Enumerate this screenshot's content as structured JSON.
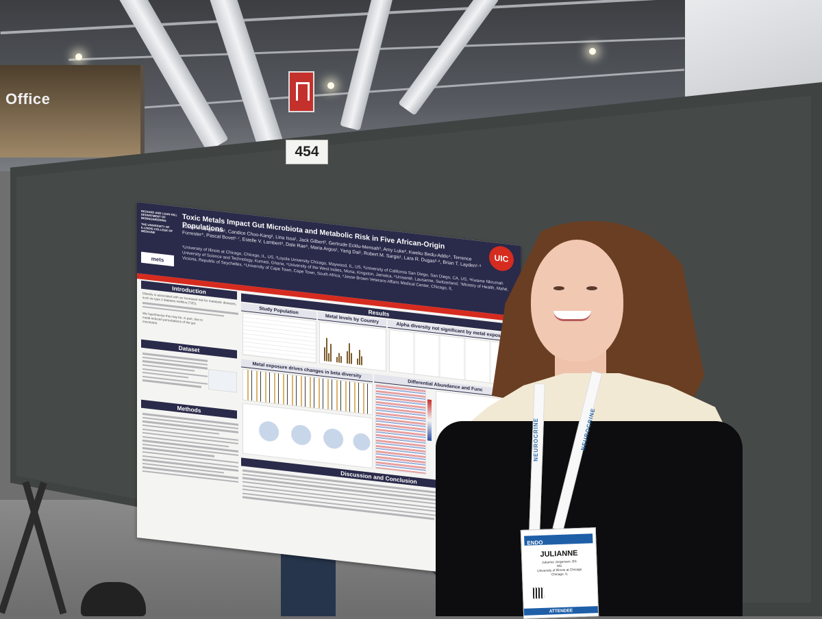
{
  "scene": {
    "colors": {
      "board": "#3f4342",
      "poster_header": "#2a2a4a",
      "accent_red": "#d62b1f",
      "hair": "#6a3e22",
      "dress": "#0d0d0f"
    },
    "store_sign": "Office",
    "board_number": "454"
  },
  "poster": {
    "dept": "RICHARD AND LOAN HILL DEPARTMENT OF BIOENGINEERING",
    "college": "THE UNIVERSITY OF ILLINOIS COLLEGE OF MEDICINE",
    "mets_logo": "mets",
    "uic_logo": "UIC",
    "title": "Toxic Metals Impact Gut Microbiota and Metabolic Risk in Five African-Origin Populations",
    "authors": "Julianne Jorgensen¹, Candice Choo-Kang², Lina Issa¹, Jack Gilbert³, Gertrude Ecklu-Mensah³, Amy Luke², Kweku Bedu-Addo⁴, Terrence Forrester⁵, Pascal Bovet⁶·⁷, Estelle V. Lambert⁸, Dale Rae⁸, Maria Argos¹, Yang Dai¹, Robert M. Sargis¹, Lara R. Dugas²·⁸, Brian T. Layden¹·⁹",
    "affiliations": "¹University of Illinois at Chicago, Chicago, IL, US, ²Loyola University Chicago, Maywood, IL, US, ³University of California San Diego, San Diego, CA, US, ⁴Kwame Nkrumah University of Science and Technology, Kumasi, Ghana, ⁵University of the West Indies, Mona, Kingston, Jamaica, ⁶Unisanté, Lausanne, Switzerland, ⁷Ministry of Health, Mahé, Victoria, Republic of Seychelles, ⁸University of Cape Town, Cape Town, South Africa, ⁹Jesse Brown Veterans Affairs Medical Center, Chicago, IL",
    "sections": {
      "introduction": "Introduction",
      "dataset": "Dataset",
      "methods": "Methods",
      "results": "Results",
      "discussion": "Discussion and Conclusion"
    },
    "subsections": {
      "study_population": "Study Population",
      "metal_levels": "Metal levels by Country",
      "alpha_diversity": "Alpha diversity not significant by metal exposure",
      "beta_diversity": "Metal exposure drives changes in beta diversity",
      "differential": "Differential Abundance and Func"
    },
    "intro_text": "Obesity is associated with an increased risk for metabolic diseases, such as type 2 diabetes mellitus (T2D).",
    "intro_text_2": "We hypothesize this may be, in part, due to metal-induced perturbations of the gut microbiota"
  },
  "badge": {
    "event": "ENDO",
    "name": "JULIANNE",
    "detail_1": "Julianne Jorgensen, BS",
    "detail_2": "MS",
    "detail_3": "University of Illinois at Chicago",
    "detail_4": "Chicago, IL",
    "type": "ATTENDEE",
    "lanyard_text": "NEUROCRINE"
  }
}
